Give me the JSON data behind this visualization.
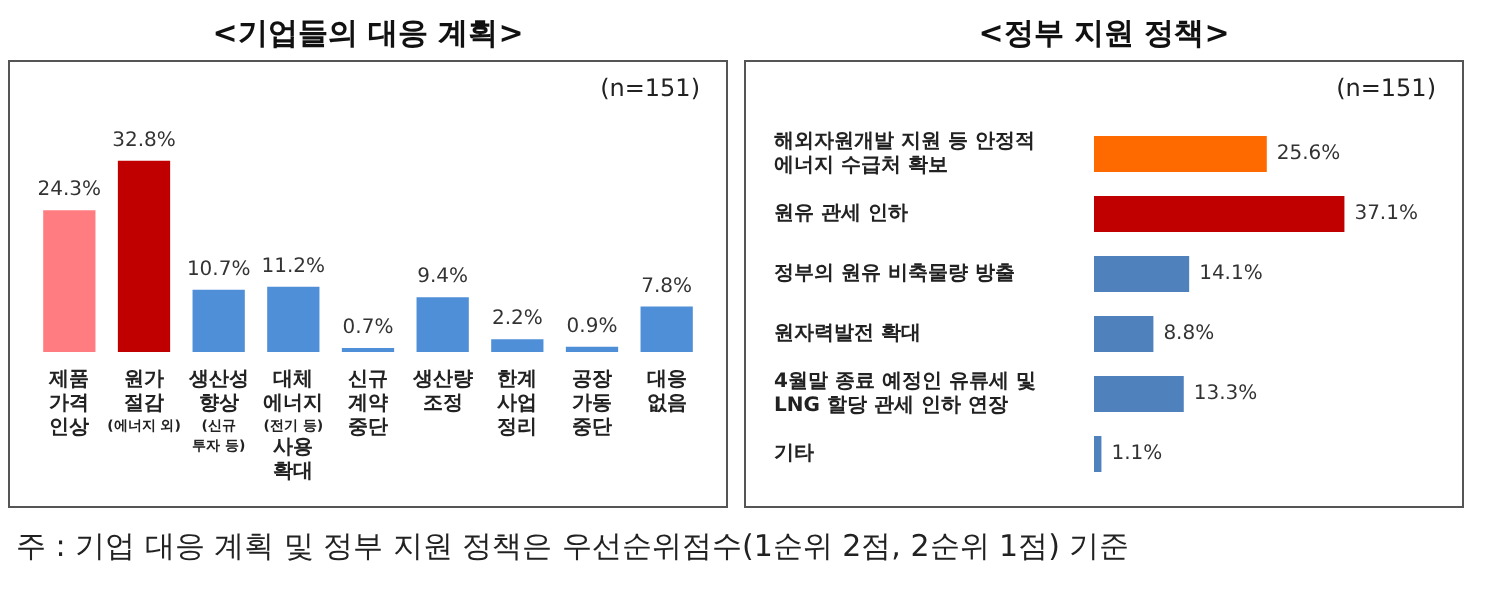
{
  "chart_data": [
    {
      "type": "bar",
      "title": "<기업들의 대응 계획>",
      "annotations": [
        "(n=151)"
      ],
      "categories": [
        "제품\n가격\n인상",
        "원가\n절감\n(에너지 외)",
        "생산성\n향상\n(신규\n투자 등)",
        "대체\n에너지\n(전기 등)\n사용\n확대",
        "신규\n계약\n중단",
        "생산량\n조정",
        "한계\n사업\n정리",
        "공장\n가동\n중단",
        "대응\n없음"
      ],
      "values": [
        24.3,
        32.8,
        10.7,
        11.2,
        0.7,
        9.4,
        2.2,
        0.9,
        7.8
      ],
      "value_labels": [
        "24.3%",
        "32.8%",
        "10.7%",
        "11.2%",
        "0.7%",
        "9.4%",
        "2.2%",
        "0.9%",
        "7.8%"
      ],
      "colors": [
        "#ff7c80",
        "#c00000",
        "#4f8fd8",
        "#4f8fd8",
        "#4f8fd8",
        "#4f8fd8",
        "#4f8fd8",
        "#4f8fd8",
        "#4f8fd8"
      ]
    },
    {
      "type": "bar",
      "orientation": "horizontal",
      "title": "<정부 지원 정책>",
      "annotations": [
        "(n=151)",
        "주 : 기업 대응 계획 및 정부 지원 정책은 우선순위점수(1순위 2점, 2순위 1점) 기준"
      ],
      "categories": [
        "해외자원개발 지원 등 안정적\n에너지 수급처 확보",
        "원유 관세 인하",
        "정부의 원유 비축물량 방출",
        "원자력발전 확대",
        "4월말 종료 예정인 유류세 및\nLNG 할당 관세 인하 연장",
        "기타"
      ],
      "values": [
        25.6,
        37.1,
        14.1,
        8.8,
        13.3,
        1.1
      ],
      "value_labels": [
        "25.6%",
        "37.1%",
        "14.1%",
        "8.8%",
        "13.3%",
        "1.1%"
      ],
      "colors": [
        "#ff6a00",
        "#c00000",
        "#4f81bd",
        "#4f81bd",
        "#4f81bd",
        "#4f81bd"
      ]
    }
  ]
}
